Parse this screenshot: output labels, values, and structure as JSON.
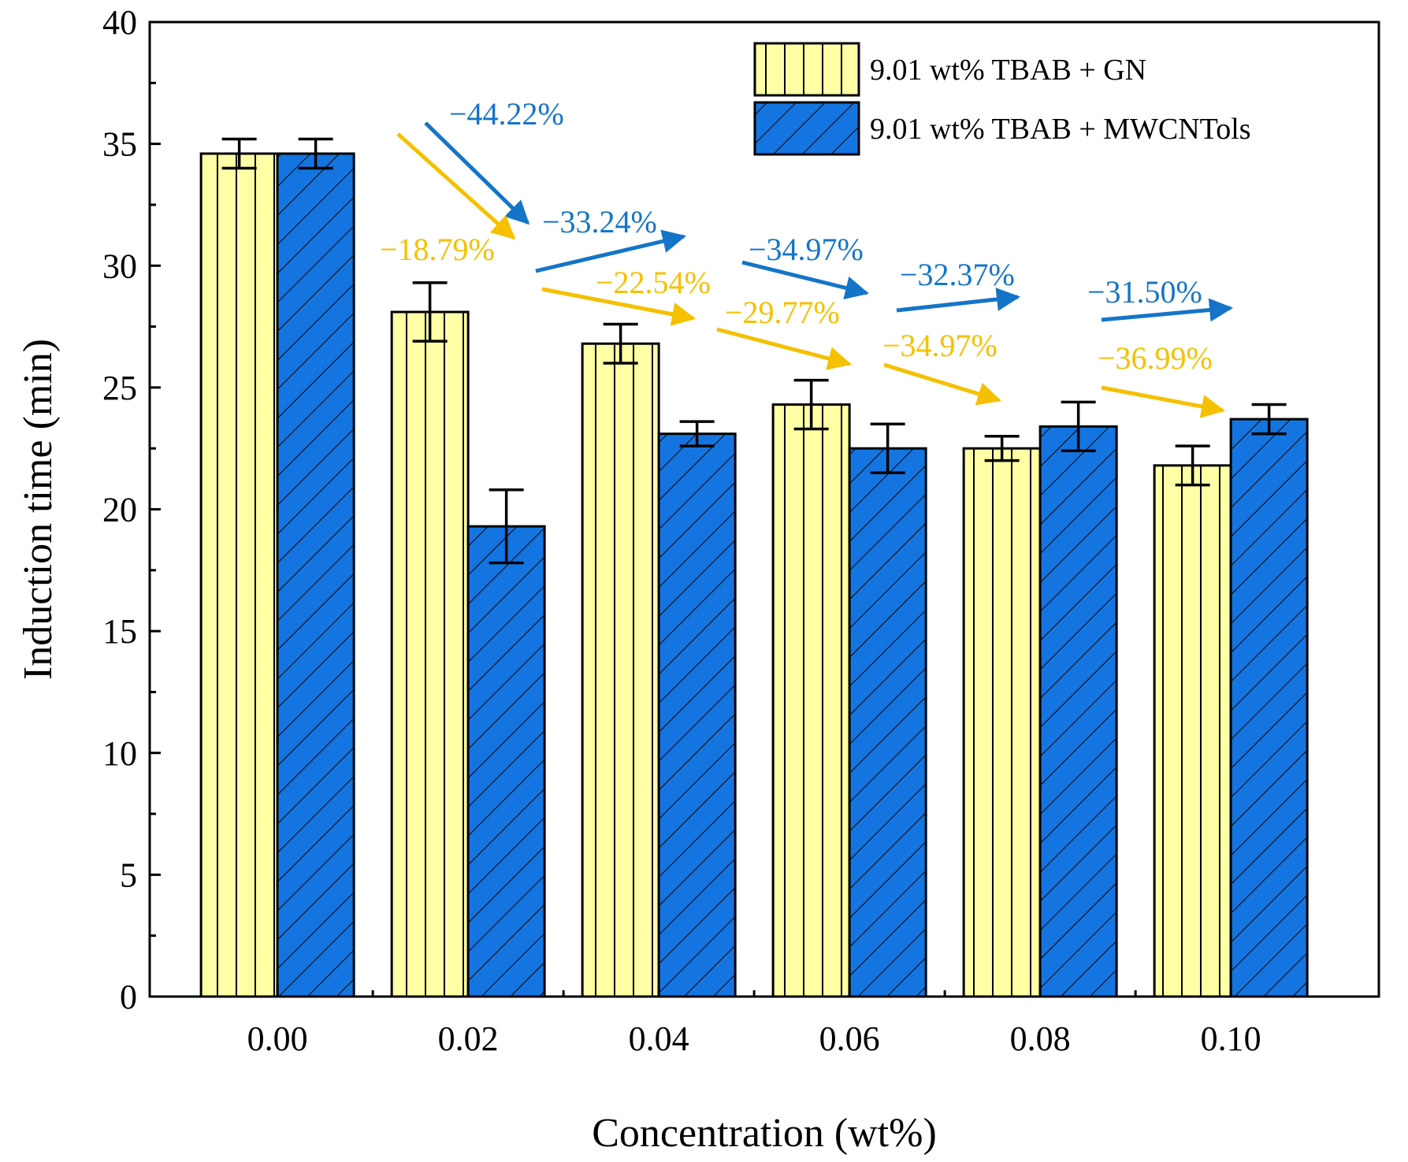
{
  "chart_data": {
    "type": "bar",
    "title": "",
    "xlabel": "Concentration (wt%)",
    "ylabel": "Induction time (min)",
    "categories": [
      "0.00",
      "0.02",
      "0.04",
      "0.06",
      "0.08",
      "0.10"
    ],
    "ylim": [
      0,
      40
    ],
    "yticks": [
      "0",
      "5",
      "10",
      "15",
      "20",
      "25",
      "30",
      "35",
      "40"
    ],
    "legend_position": "top-right",
    "grid": false,
    "series": [
      {
        "name": "9.01 wt% TBAB + GN",
        "color": "#FFFFA6",
        "pattern": "vertical-lines",
        "values": [
          34.6,
          28.1,
          26.8,
          24.3,
          22.5,
          21.8
        ],
        "errors": [
          0.6,
          1.2,
          0.8,
          1.0,
          0.5,
          0.8
        ]
      },
      {
        "name": "9.01 wt% TBAB + MWCNTols",
        "color": "#1475E0",
        "pattern": "diagonal-lines",
        "values": [
          34.6,
          19.3,
          23.1,
          22.5,
          23.4,
          23.7
        ],
        "errors": [
          0.6,
          1.5,
          0.5,
          1.0,
          1.0,
          0.6
        ]
      }
    ],
    "annotations": {
      "blue": {
        "color": "#1475C8",
        "labels": [
          "−44.22%",
          "−33.24%",
          "−34.97%",
          "−32.37%",
          "−31.50%"
        ]
      },
      "yellow": {
        "color": "#F5C000",
        "labels": [
          "−18.79%",
          "−22.54%",
          "−29.77%",
          "−34.97%",
          "−36.99%"
        ]
      }
    }
  }
}
